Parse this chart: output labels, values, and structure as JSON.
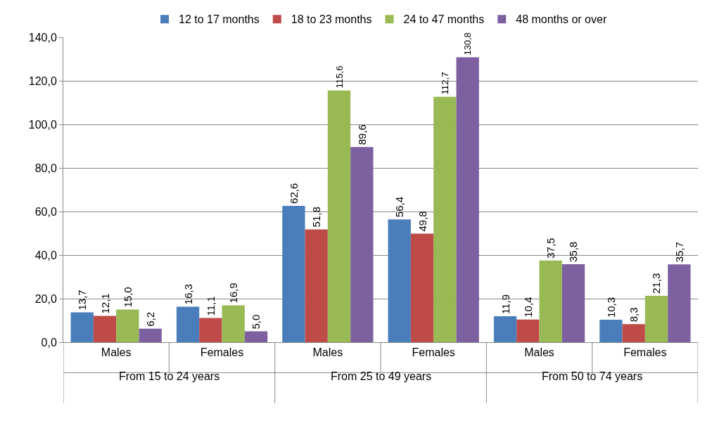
{
  "chart_data": {
    "type": "bar",
    "categories": [
      "Males",
      "Females",
      "Males",
      "Females",
      "Males",
      "Females"
    ],
    "series": [
      {
        "name": "12 to 17 months",
        "color": "#4a7ebb",
        "values": [
          13.7,
          16.3,
          62.6,
          56.4,
          11.9,
          10.3
        ],
        "value_labels": [
          "13,7",
          "16,3",
          "62,6",
          "56,4",
          "11,9",
          "10,3"
        ]
      },
      {
        "name": "18 to 23 months",
        "color": "#be4b48",
        "values": [
          12.1,
          11.1,
          51.8,
          49.8,
          10.4,
          8.3
        ],
        "value_labels": [
          "12,1",
          "11,1",
          "51,8",
          "49,8",
          "10,4",
          "8,3"
        ]
      },
      {
        "name": "24 to 47 months",
        "color": "#98b954",
        "values": [
          15.0,
          16.9,
          115.6,
          112.7,
          37.5,
          21.3
        ],
        "value_labels": [
          "15,0",
          "16,9",
          "115,6",
          "112,7",
          "37,5",
          "21,3"
        ]
      },
      {
        "name": "48 months or over",
        "color": "#7d60a0",
        "values": [
          6.2,
          5.0,
          89.6,
          130.8,
          35.8,
          35.7
        ],
        "value_labels": [
          "6,2",
          "5,0",
          "89,6",
          "130,8",
          "35,8",
          "35,7"
        ]
      }
    ],
    "annotations": [
      "From 15 to 24 years",
      "From 25 to 49 years",
      "From 50 to 74 years"
    ],
    "ylim": [
      0,
      140
    ],
    "yticks": [
      {
        "value": 0,
        "label": "0,0"
      },
      {
        "value": 20,
        "label": "20,0"
      },
      {
        "value": 40,
        "label": "40,0"
      },
      {
        "value": 60,
        "label": "60,0"
      },
      {
        "value": 80,
        "label": "80,0"
      },
      {
        "value": 100,
        "label": "100,0"
      },
      {
        "value": 120,
        "label": "120,0"
      },
      {
        "value": 140,
        "label": "140,0"
      }
    ],
    "grid": "y",
    "legend": "top"
  }
}
